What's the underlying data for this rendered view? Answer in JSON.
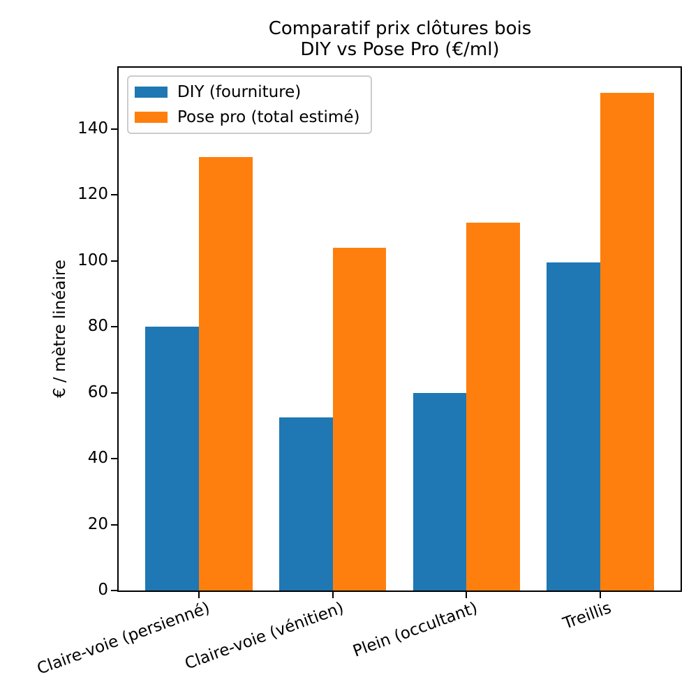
{
  "figure": {
    "background": "#ffffff",
    "axis_color": "#000000",
    "legend_border_color": "#cccccc"
  },
  "chart_data": {
    "type": "bar",
    "title": "Comparatif prix clôtures bois\nDIY vs Pose Pro (€/ml)",
    "title_lines": [
      "Comparatif prix clôtures bois",
      "DIY vs Pose Pro (€/ml)"
    ],
    "ylabel": "€ / mètre linéaire",
    "xlabel": "",
    "categories": [
      "Claire-voie (persienné)",
      "Claire-voie (vénitien)",
      "Plein (occultant)",
      "Treillis"
    ],
    "series": [
      {
        "name": "DIY (fourniture)",
        "color": "#1f77b4",
        "values": [
          80,
          52.5,
          60,
          99.5
        ]
      },
      {
        "name": "Pose pro (total estimé)",
        "color": "#ff7f0e",
        "values": [
          131.5,
          104,
          111.5,
          151
        ]
      }
    ],
    "yticks": [
      0,
      20,
      40,
      60,
      80,
      100,
      120,
      140
    ],
    "ylim": [
      0,
      158.6
    ],
    "xlim": [
      -0.6,
      3.6
    ],
    "bar_width": 0.4,
    "grid": false,
    "legend_position": "upper left",
    "xtick_rotation_deg": 20
  }
}
